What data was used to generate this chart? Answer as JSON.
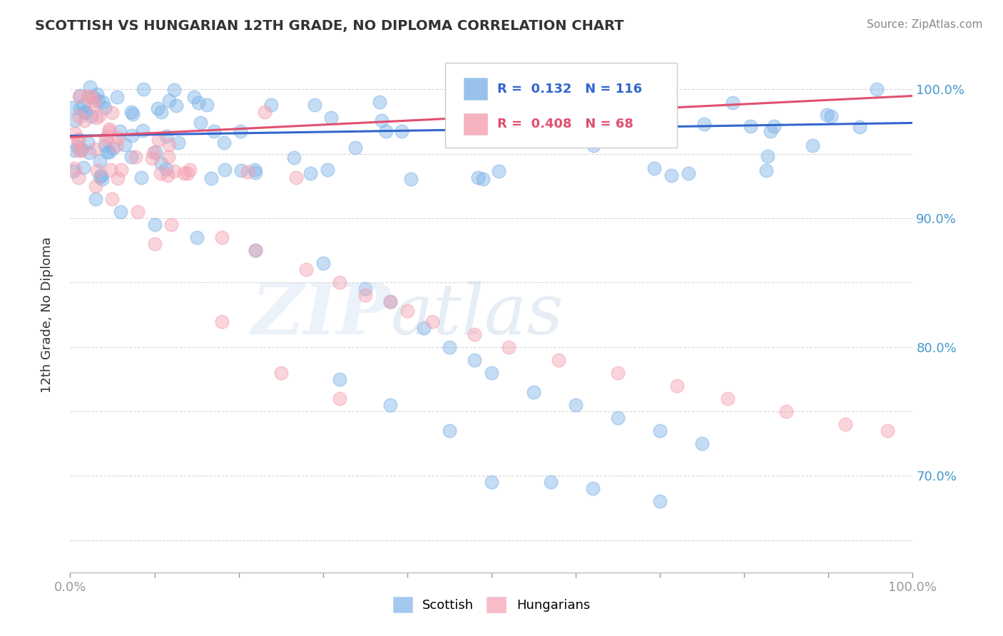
{
  "title": "SCOTTISH VS HUNGARIAN 12TH GRADE, NO DIPLOMA CORRELATION CHART",
  "source_text": "Source: ZipAtlas.com",
  "ylabel": "12th Grade, No Diploma",
  "xlim": [
    0.0,
    1.0
  ],
  "ylim": [
    0.625,
    1.025
  ],
  "scottish_color": "#7EB3E8",
  "hungarian_color": "#F4A0B0",
  "scottish_line_color": "#3366CC",
  "hungarian_line_color": "#E05070",
  "background_color": "#FFFFFF",
  "scottish_trend_start": 0.964,
  "scottish_trend_end": 0.974,
  "hungarian_trend_start": 0.963,
  "hungarian_trend_end": 0.995,
  "ytick_positions": [
    0.65,
    0.7,
    0.75,
    0.8,
    0.85,
    0.9,
    0.95,
    1.0
  ],
  "ytick_right_positions": [
    0.7,
    0.8,
    0.9,
    1.0
  ],
  "ytick_right_labels": [
    "70.0%",
    "80.0%",
    "90.0%",
    "100.0%"
  ],
  "axis_color": "#4499CC",
  "tick_color": "#999999"
}
